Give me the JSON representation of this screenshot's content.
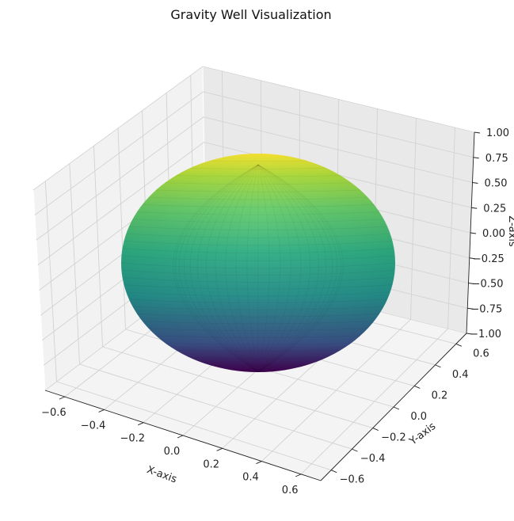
{
  "chart_data": {
    "type": "surface3d",
    "title": "Gravity Well Visualization",
    "xlabel": "X-axis",
    "ylabel": "Y-axis",
    "zlabel": "Z-axis",
    "xlim": [
      -0.7,
      0.7
    ],
    "ylim": [
      -0.7,
      0.7
    ],
    "zlim": [
      -1.0,
      1.0
    ],
    "x_ticks": [
      "−0.6",
      "−0.4",
      "−0.2",
      "0.0",
      "0.2",
      "0.4",
      "0.6"
    ],
    "y_ticks": [
      "−0.6",
      "−0.4",
      "−0.2",
      "0.0",
      "0.2",
      "0.4",
      "0.6"
    ],
    "z_ticks": [
      "−1.00",
      "−0.75",
      "−0.50",
      "−0.25",
      "0.00",
      "0.25",
      "0.50",
      "0.75",
      "1.00"
    ],
    "surface": "ellipsoid",
    "semi_axis_x": 0.6,
    "semi_axis_y": 0.6,
    "semi_axis_z": 1.0,
    "colormap": "viridis",
    "grid": true
  }
}
